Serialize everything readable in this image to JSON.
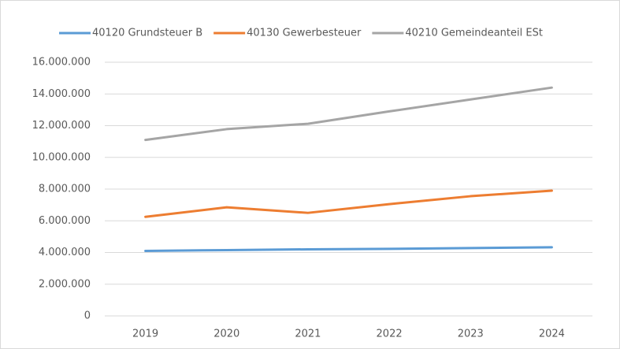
{
  "chart_data": {
    "type": "line",
    "categories": [
      "2019",
      "2020",
      "2021",
      "2022",
      "2023",
      "2024"
    ],
    "series": [
      {
        "name": "40120 Grundsteuer B",
        "color": "#5b9bd5",
        "values": [
          4100000,
          4150000,
          4200000,
          4230000,
          4280000,
          4330000
        ]
      },
      {
        "name": "40130 Gewerbesteuer",
        "color": "#ed7d31",
        "values": [
          6250000,
          6850000,
          6500000,
          7050000,
          7550000,
          7900000
        ]
      },
      {
        "name": "40210 Gemeindeanteil ESt",
        "color": "#a5a5a5",
        "values": [
          11100000,
          11780000,
          12120000,
          12900000,
          13650000,
          14400000
        ]
      }
    ],
    "ylim": [
      0,
      16000000
    ],
    "yticks": [
      0,
      {
        "value": 2000000,
        "label": "2.000.000"
      },
      {
        "value": 4000000,
        "label": "4.000.000"
      },
      {
        "value": 6000000,
        "label": "6.000.000"
      },
      {
        "value": 8000000,
        "label": "8.000.000"
      },
      {
        "value": 10000000,
        "label": "10.000.000"
      },
      {
        "value": 12000000,
        "label": "12.000.000"
      },
      {
        "value": 14000000,
        "label": "14.000.000"
      },
      {
        "value": 16000000,
        "label": "16.000.000"
      }
    ],
    "grid": true,
    "legend": "top"
  }
}
